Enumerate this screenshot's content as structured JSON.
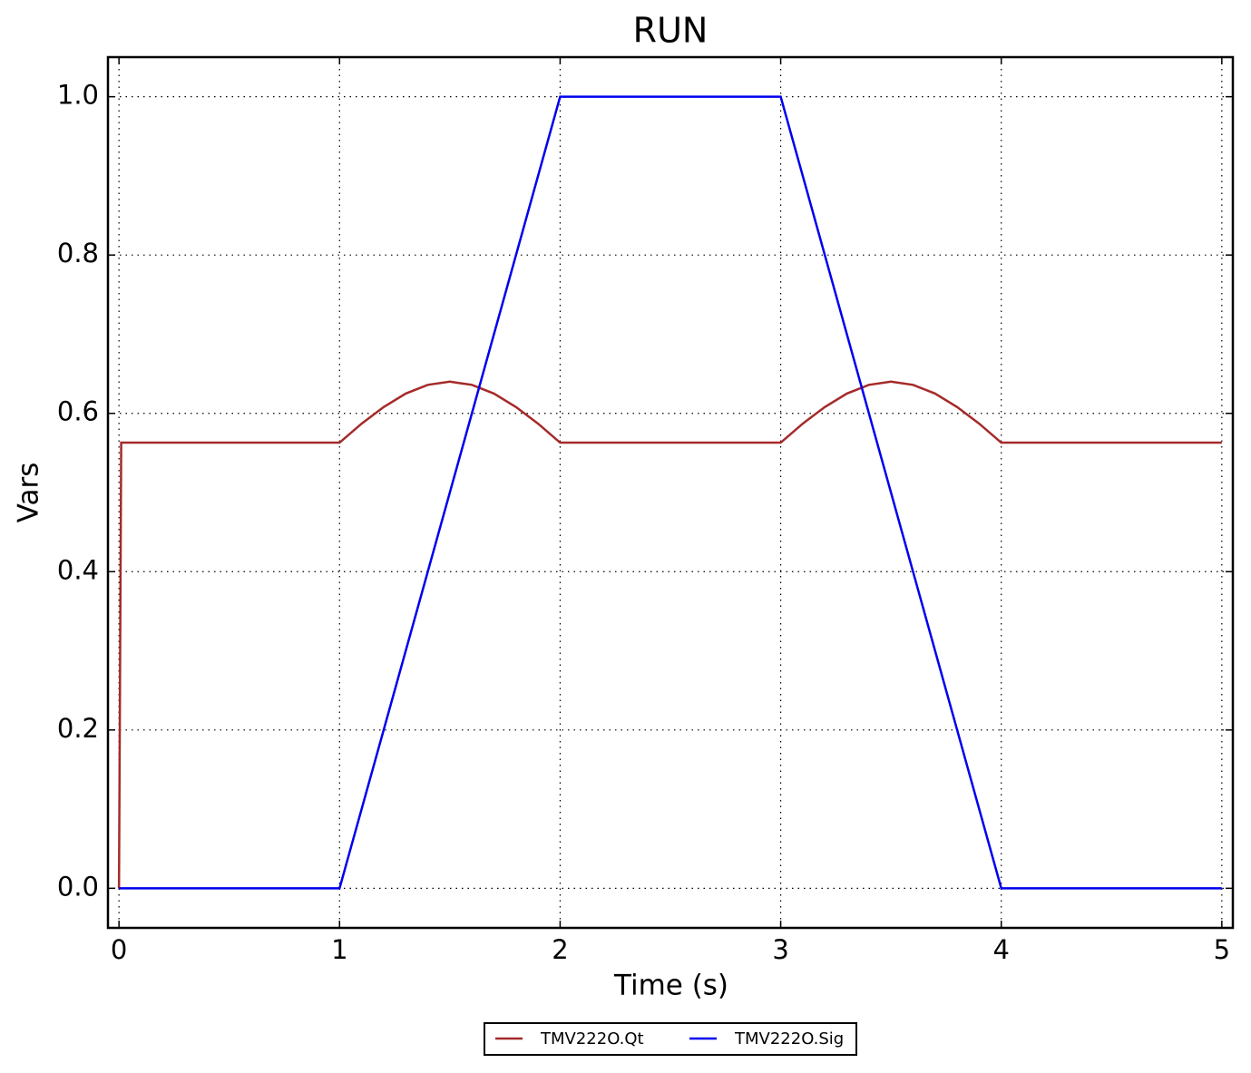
{
  "chart_data": {
    "type": "line",
    "title": "RUN",
    "x_label": "Time (s)",
    "y_label": "Vars",
    "xlim": [
      -0.05,
      5.05
    ],
    "ylim": [
      -0.05,
      1.05
    ],
    "xticks": [
      0,
      1,
      2,
      3,
      4,
      5
    ],
    "yticks": [
      {
        "value": 0,
        "label": "0.0"
      },
      0.2,
      0.4,
      0.6,
      0.8,
      {
        "value": 1,
        "label": "1.0"
      }
    ],
    "grid": true,
    "legend": "below",
    "series": [
      {
        "name": "TMV222O.Qt",
        "color": "#a52a2a",
        "x": [
          0,
          0.01,
          1,
          1.1,
          1.2,
          1.3,
          1.4,
          1.5,
          1.6,
          1.7,
          1.8,
          1.9,
          2,
          3,
          3.1,
          3.2,
          3.3,
          3.4,
          3.5,
          3.6,
          3.7,
          3.8,
          3.9,
          4,
          5
        ],
        "values": [
          0,
          0.563,
          0.563,
          0.587,
          0.608,
          0.625,
          0.636,
          0.64,
          0.636,
          0.625,
          0.608,
          0.587,
          0.563,
          0.563,
          0.587,
          0.608,
          0.625,
          0.636,
          0.64,
          0.636,
          0.625,
          0.608,
          0.587,
          0.563,
          0.563
        ]
      },
      {
        "name": "TMV222O.Sig",
        "color": "#0000ee",
        "x": [
          0,
          1,
          2,
          3,
          4,
          5
        ],
        "values": [
          0,
          0,
          1,
          1,
          0,
          0
        ]
      }
    ]
  }
}
